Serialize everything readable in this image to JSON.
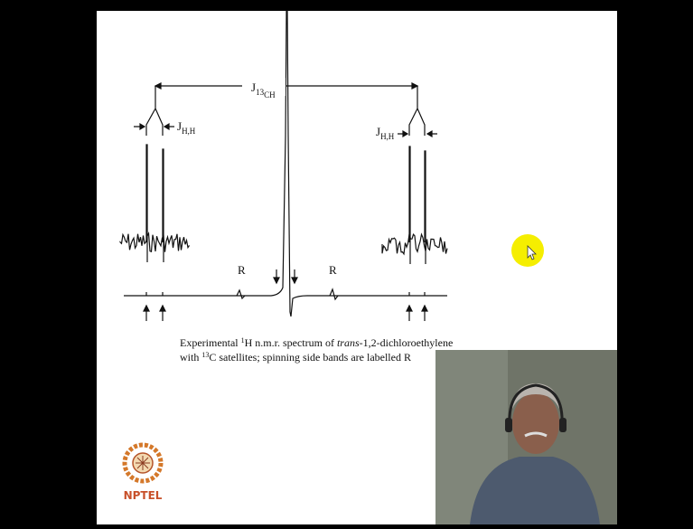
{
  "figure": {
    "j_13ch": {
      "symbol": "J",
      "isotope": "13",
      "nucleus": "CH"
    },
    "j_hh_left": {
      "symbol": "J",
      "subscript": "H,H"
    },
    "j_hh_right": {
      "symbol": "J",
      "subscript": "H,H"
    },
    "sideband_left": "R",
    "sideband_right": "R"
  },
  "caption": {
    "line1": [
      "Experimental ",
      "1",
      "H n.m.r. spectrum of ",
      "trans",
      "-1,2-dichloroethylene"
    ],
    "line2": [
      "with ",
      "13",
      "C satellites; spinning side bands are labelled R"
    ]
  },
  "logo": {
    "text": "NPTEL"
  }
}
